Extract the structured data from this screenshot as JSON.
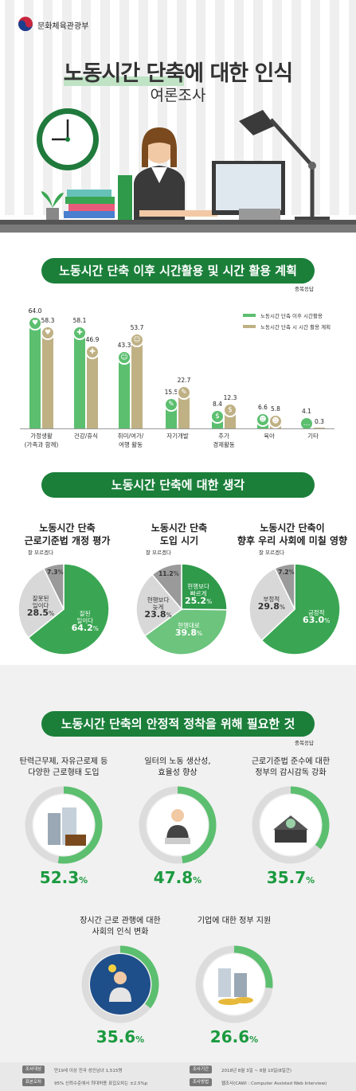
{
  "header": {
    "ministry": "문화체육관광부",
    "title_part1": "노동시간 단축",
    "title_part2": "에 대한 인식",
    "subtitle": "여론조사"
  },
  "section1": {
    "title": "노동시간 단축 이후 시간활용 및 시간 활용 계획",
    "note": "중복응답",
    "legend": [
      "노동시간 단축 이후 시간활용",
      "노동시간 단축 시 시간 활용 계획"
    ]
  },
  "chart_data": {
    "type": "bar",
    "categories": [
      "가정생활\n(가족과 함께)",
      "건강/휴식",
      "취미/여가/\n여행 활동",
      "자기개발",
      "추가\n경제활동",
      "육아",
      "기타"
    ],
    "series": [
      {
        "name": "노동시간 단축 이후 시간활용",
        "values": [
          64.0,
          58.1,
          43.3,
          15.5,
          8.4,
          6.6,
          4.1
        ]
      },
      {
        "name": "노동시간 단축 시 시간 활용 계획",
        "values": [
          58.3,
          46.9,
          53.7,
          22.7,
          12.3,
          5.8,
          0.3
        ]
      }
    ],
    "colors": [
      "#5cbf6f",
      "#bfb184"
    ],
    "ylim": [
      0,
      70
    ]
  },
  "section2": {
    "title": "노동시간 단축에 대한 생각",
    "pies": [
      {
        "heading": "노동시간 단축\n근로기준법 개정 평가",
        "dontknow_label": "잘 모르겠다",
        "slices": [
          {
            "label": "잘된\n일이다",
            "value": 64.2,
            "color": "#3aa653"
          },
          {
            "label": "잘못된\n일이다",
            "value": 28.5,
            "color": "#d8d8d8"
          },
          {
            "label": "",
            "value": 7.3,
            "color": "#9a9a9a"
          }
        ]
      },
      {
        "heading": "노동시간 단축\n도입 시기",
        "dontknow_label": "잘 모르겠다",
        "slices": [
          {
            "label": "현행보다\n빠르게",
            "value": 25.2,
            "color": "#2e9a4a"
          },
          {
            "label": "현행대로",
            "value": 39.8,
            "color": "#6cc47d"
          },
          {
            "label": "현행보다\n늦게",
            "value": 23.8,
            "color": "#d8d8d8"
          },
          {
            "label": "",
            "value": 11.2,
            "color": "#9a9a9a"
          }
        ]
      },
      {
        "heading": "노동시간 단축이\n향후 우리 사회에 미칠 영향",
        "dontknow_label": "잘 모르겠다",
        "slices": [
          {
            "label": "긍정적",
            "value": 63.0,
            "color": "#3aa653"
          },
          {
            "label": "부정적",
            "value": 29.8,
            "color": "#d8d8d8"
          },
          {
            "label": "",
            "value": 7.2,
            "color": "#9a9a9a"
          }
        ]
      }
    ]
  },
  "section3": {
    "title": "노동시간 단축의 안정적 정착을 위해 필요한 것",
    "note": "중복응답",
    "items": [
      {
        "label": "탄력근무제, 자유근로제 등\n다양한 근로형태 도입",
        "value": "52.3",
        "pct": 52.3
      },
      {
        "label": "일터의 노동 생산성,\n효율성 향상",
        "value": "47.8",
        "pct": 47.8
      },
      {
        "label": "근로기준법 준수에 대한\n정부의 감시감독 강화",
        "value": "35.7",
        "pct": 35.7
      },
      {
        "label": "장시간 근로 관행에 대한\n사회의 인식 변화",
        "value": "35.6",
        "pct": 35.6
      },
      {
        "label": "기업에 대한 정부 지원",
        "value": "26.6",
        "pct": 26.6
      }
    ],
    "unit": "%"
  },
  "footer": {
    "rows": [
      {
        "tag": "조사대상",
        "text": "만19세 이상 전국 성인남녀 1,515명"
      },
      {
        "tag": "표본오차",
        "text": "95% 신뢰수준에서 최대허용 표집오차는 ±2.5%p"
      },
      {
        "tag": "조사기간",
        "text": "2018년 8월 3일 ~ 8월 10일(8일간)"
      },
      {
        "tag": "조사방법",
        "text": "웹조사(CAWI : Computer Assisted Web Interview)"
      }
    ]
  }
}
